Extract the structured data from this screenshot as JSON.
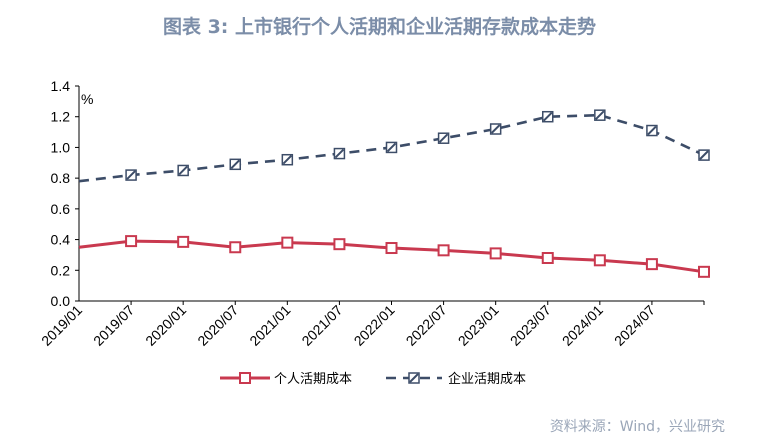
{
  "title": "图表 3:  上市银行个人活期和企业活期存款成本走势",
  "source": "资料来源：Wind，兴业研究",
  "colors": {
    "personal": "#c9394f",
    "corporate": "#3d4d68"
  },
  "chart_data": {
    "type": "line",
    "ylabel": "%",
    "ylim": [
      0,
      1.4
    ],
    "yticks": [
      "0.0",
      "0.2",
      "0.4",
      "0.6",
      "0.8",
      "1.0",
      "1.2",
      "1.4"
    ],
    "xticks": [
      "2019/01",
      "2019/07",
      "2020/01",
      "2020/07",
      "2021/01",
      "2021/07",
      "2022/01",
      "2022/07",
      "2023/01",
      "2023/07",
      "2024/01",
      "2024/07"
    ],
    "x": [
      "2018/12",
      "2019/06",
      "2019/12",
      "2020/06",
      "2020/12",
      "2021/06",
      "2021/12",
      "2022/06",
      "2022/12",
      "2023/06",
      "2023/12",
      "2024/06",
      "2024/12"
    ],
    "legend_position": "bottom",
    "series": [
      {
        "name": "个人活期成本",
        "marker": "square",
        "values": [
          0.35,
          0.39,
          0.385,
          0.35,
          0.38,
          0.37,
          0.345,
          0.33,
          0.31,
          0.28,
          0.265,
          0.24,
          0.19
        ]
      },
      {
        "name": "企业活期成本",
        "marker": "dash-box",
        "values": [
          0.78,
          0.82,
          0.85,
          0.89,
          0.92,
          0.96,
          1.0,
          1.06,
          1.12,
          1.2,
          1.21,
          1.11,
          0.95
        ]
      }
    ]
  }
}
